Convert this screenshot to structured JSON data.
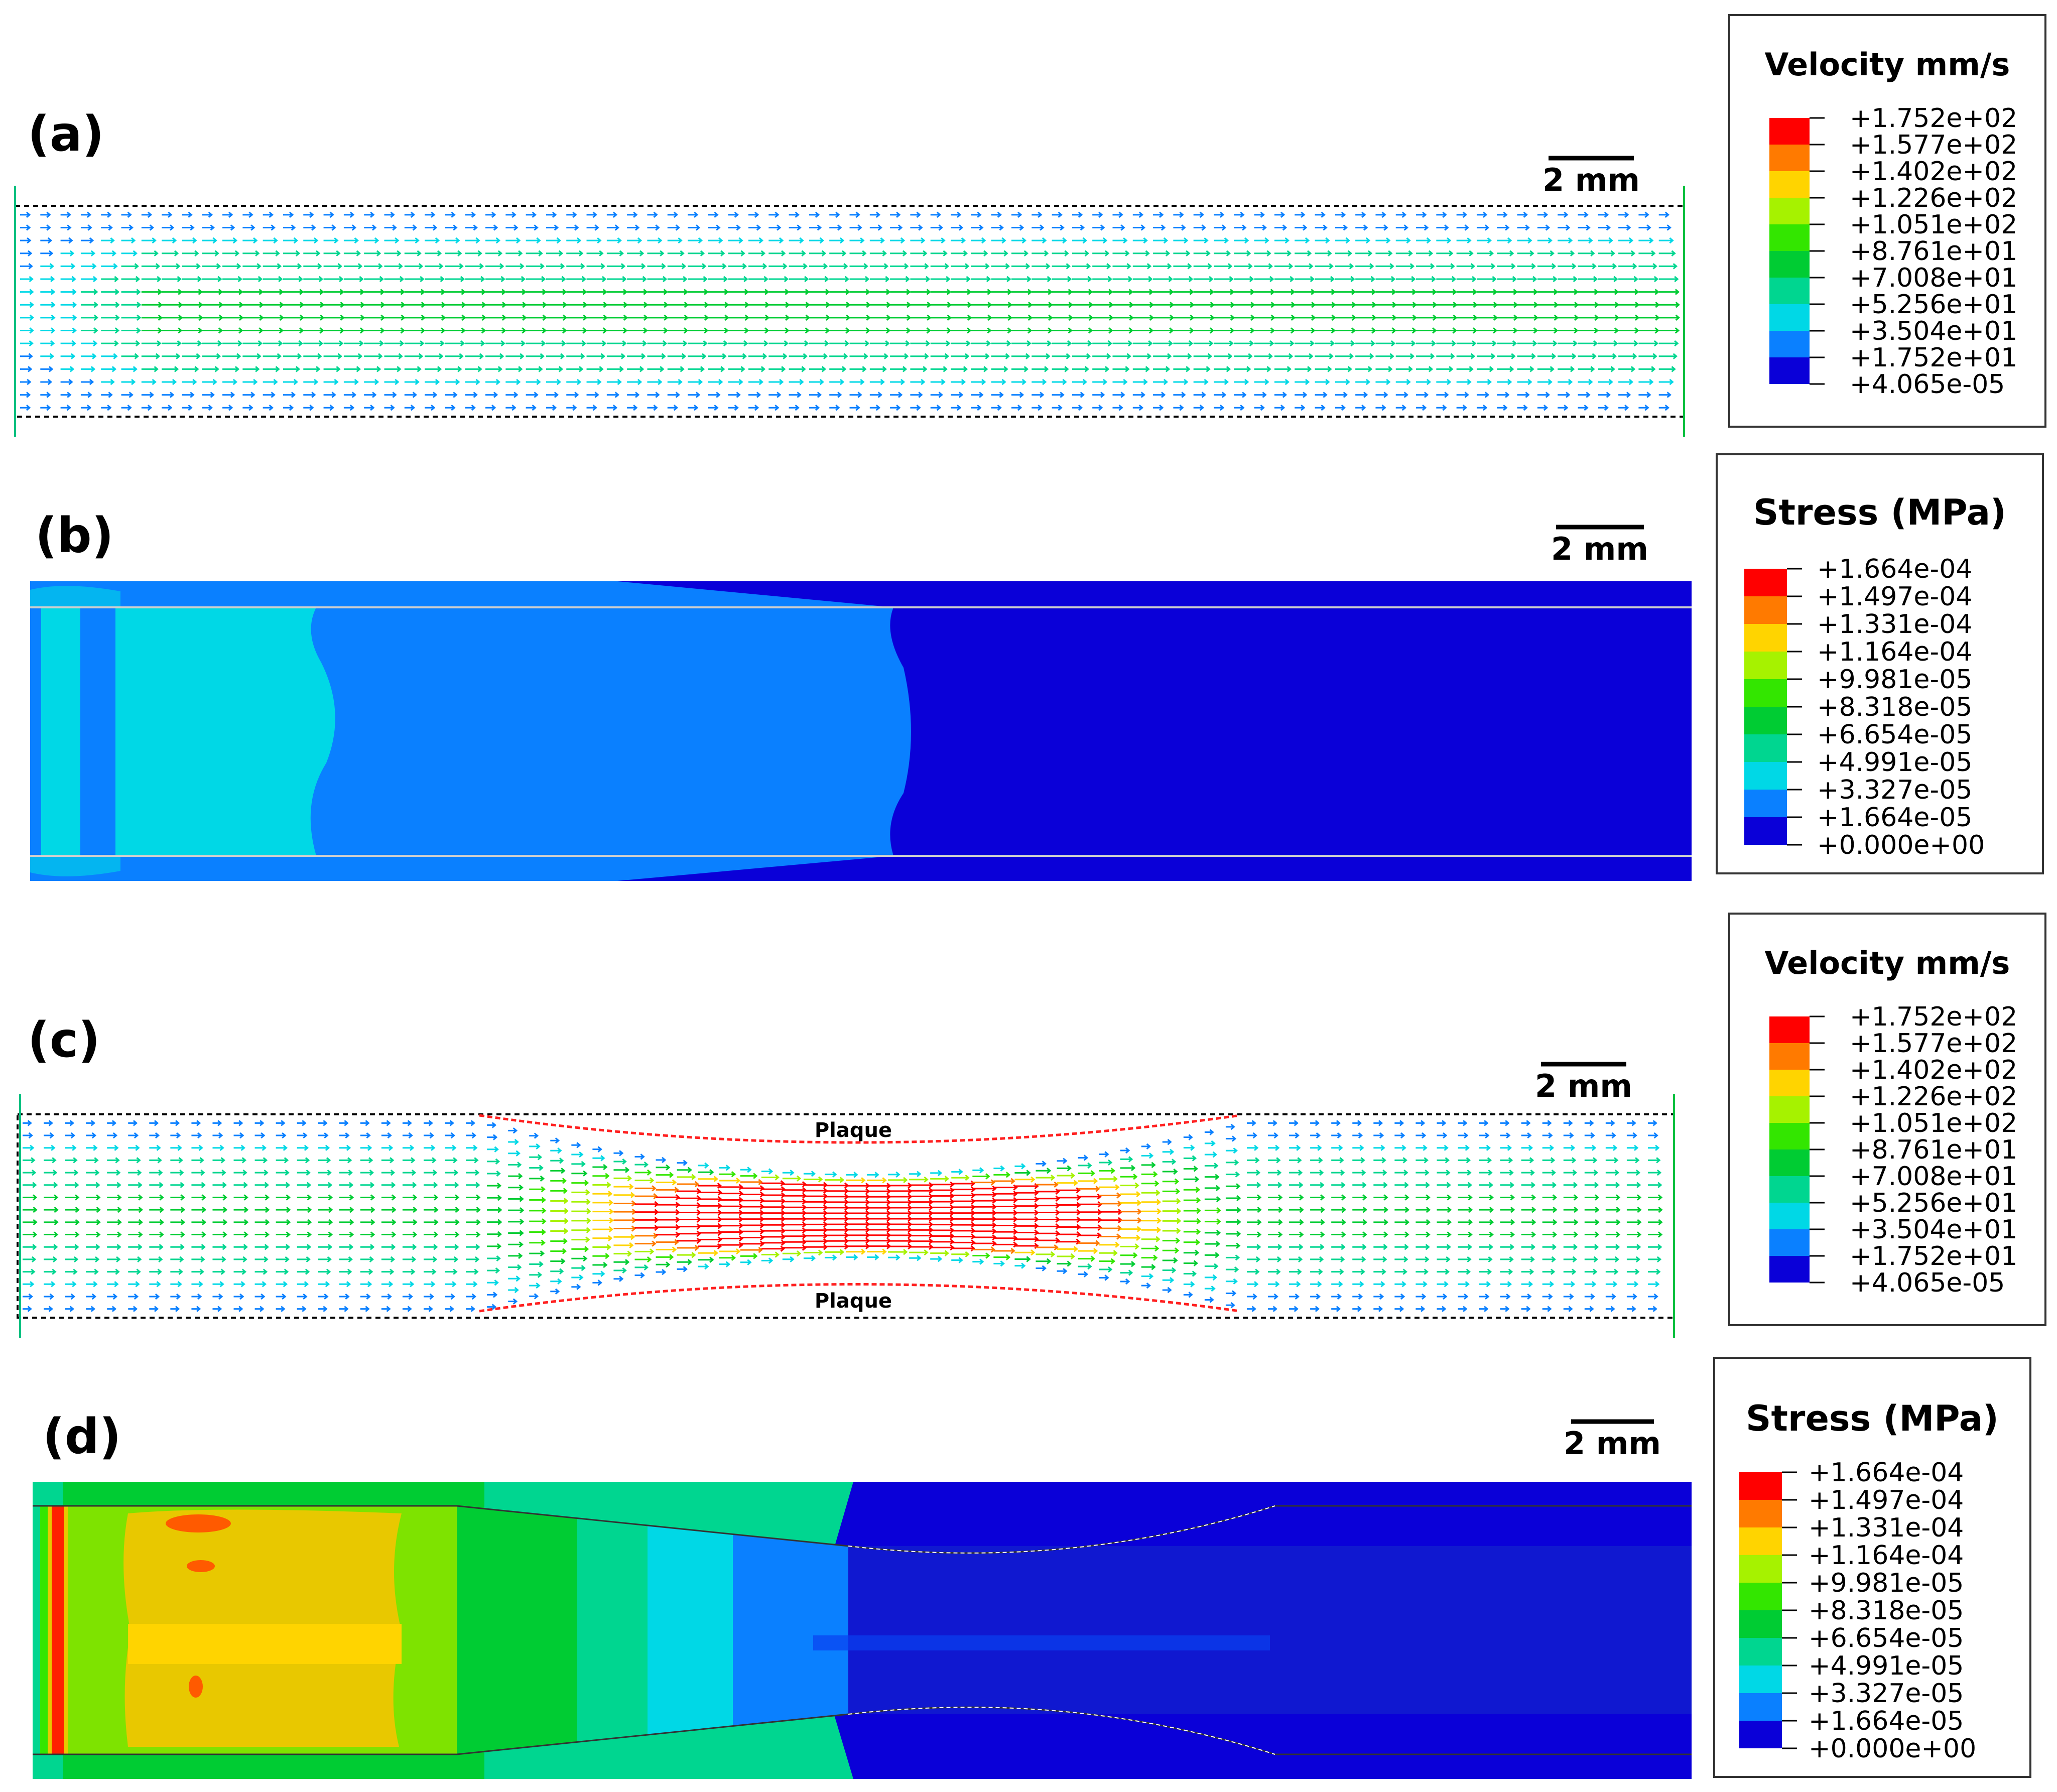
{
  "panels": [
    {
      "id": "a",
      "label": "(a)",
      "kind": "velocity",
      "scale_bar": "2 mm",
      "legend": {
        "title": "Velocity mm/s",
        "ticks": [
          "+1.752e+02",
          "+1.577e+02",
          "+1.402e+02",
          "+1.226e+02",
          "+1.051e+02",
          "+8.761e+01",
          "+7.008e+01",
          "+5.256e+01",
          "+3.504e+01",
          "+1.752e+01",
          "+4.065e-05"
        ]
      }
    },
    {
      "id": "b",
      "label": "(b)",
      "kind": "stress",
      "scale_bar": "2 mm",
      "legend": {
        "title": "Stress (MPa)",
        "ticks": [
          "+1.664e-04",
          "+1.497e-04",
          "+1.331e-04",
          "+1.164e-04",
          "+9.981e-05",
          "+8.318e-05",
          "+6.654e-05",
          "+4.991e-05",
          "+3.327e-05",
          "+1.664e-05",
          "+0.000e+00"
        ]
      }
    },
    {
      "id": "c",
      "label": "(c)",
      "kind": "velocity",
      "scale_bar": "2 mm",
      "plaque_labels": [
        "Plaque",
        "Plaque"
      ],
      "legend": {
        "title": "Velocity mm/s",
        "ticks": [
          "+1.752e+02",
          "+1.577e+02",
          "+1.402e+02",
          "+1.226e+02",
          "+1.051e+02",
          "+8.761e+01",
          "+7.008e+01",
          "+5.256e+01",
          "+3.504e+01",
          "+1.752e+01",
          "+4.065e-05"
        ]
      }
    },
    {
      "id": "d",
      "label": "(d)",
      "kind": "stress",
      "scale_bar": "2 mm",
      "legend": {
        "title": "Stress (MPa)",
        "ticks": [
          "+1.664e-04",
          "+1.497e-04",
          "+1.331e-04",
          "+1.164e-04",
          "+9.981e-05",
          "+8.318e-05",
          "+6.654e-05",
          "+4.991e-05",
          "+3.327e-05",
          "+1.664e-05",
          "+0.000e+00"
        ]
      }
    }
  ],
  "colormap": [
    "#ff0000",
    "#ff7a00",
    "#ffd400",
    "#a6f200",
    "#33e600",
    "#00cc33",
    "#00d690",
    "#00d8e6",
    "#0a80ff",
    "#0a00d8"
  ]
}
